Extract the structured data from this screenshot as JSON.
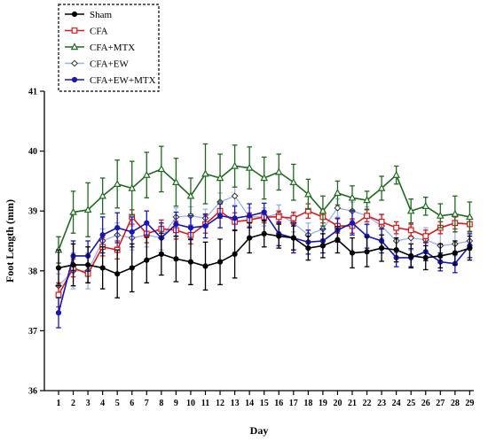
{
  "chart_data": {
    "type": "line",
    "title": "",
    "xlabel": "Day",
    "ylabel": "Foot Length (mm)",
    "ylim": [
      36,
      41
    ],
    "yticks": [
      36,
      37,
      38,
      39,
      40,
      41
    ],
    "x": [
      1,
      2,
      3,
      4,
      5,
      6,
      7,
      8,
      9,
      10,
      11,
      12,
      13,
      14,
      15,
      16,
      17,
      18,
      19,
      20,
      21,
      22,
      23,
      24,
      25,
      26,
      27,
      28,
      29
    ],
    "grid": false,
    "legend_position": "top-left",
    "series": [
      {
        "name": "Sham",
        "color": "#000000",
        "marker": "filled-circle",
        "values": [
          38.05,
          38.1,
          38.1,
          38.05,
          37.95,
          38.05,
          38.18,
          38.28,
          38.2,
          38.15,
          38.08,
          38.15,
          38.28,
          38.55,
          38.62,
          38.58,
          38.55,
          38.38,
          38.42,
          38.52,
          38.3,
          38.32,
          38.38,
          38.35,
          38.25,
          38.22,
          38.25,
          38.3,
          38.38
        ],
        "errors": [
          0.3,
          0.35,
          0.3,
          0.35,
          0.4,
          0.4,
          0.38,
          0.35,
          0.38,
          0.38,
          0.4,
          0.38,
          0.4,
          0.25,
          0.22,
          0.2,
          0.2,
          0.2,
          0.2,
          0.22,
          0.25,
          0.25,
          0.22,
          0.2,
          0.2,
          0.2,
          0.2,
          0.2,
          0.2
        ]
      },
      {
        "name": "CFA",
        "color": "#d81c1c",
        "marker": "open-square",
        "values": [
          37.6,
          38.05,
          37.95,
          38.4,
          38.35,
          38.9,
          38.62,
          38.7,
          38.68,
          38.6,
          38.78,
          39.0,
          38.82,
          38.85,
          38.9,
          38.9,
          38.88,
          39.0,
          38.9,
          38.75,
          38.75,
          38.92,
          38.82,
          38.72,
          38.68,
          38.58,
          38.72,
          38.8,
          38.78
        ],
        "errors": [
          0.2,
          0.15,
          0.15,
          0.15,
          0.15,
          0.12,
          0.15,
          0.15,
          0.15,
          0.15,
          0.15,
          0.12,
          0.15,
          0.12,
          0.1,
          0.1,
          0.1,
          0.12,
          0.1,
          0.12,
          0.12,
          0.1,
          0.12,
          0.1,
          0.1,
          0.1,
          0.1,
          0.1,
          0.12
        ]
      },
      {
        "name": "CFA+MTX",
        "color": "#1e6a1e",
        "marker": "open-triangle",
        "values": [
          38.35,
          38.98,
          39.02,
          39.25,
          39.45,
          39.38,
          39.6,
          39.7,
          39.48,
          39.25,
          39.62,
          39.55,
          39.75,
          39.72,
          39.55,
          39.65,
          39.48,
          39.28,
          39.0,
          39.3,
          39.22,
          39.18,
          39.38,
          39.6,
          39.0,
          39.08,
          38.92,
          38.95,
          38.9
        ],
        "errors": [
          0.22,
          0.35,
          0.45,
          0.3,
          0.4,
          0.45,
          0.38,
          0.38,
          0.4,
          0.3,
          0.5,
          0.4,
          0.35,
          0.35,
          0.35,
          0.3,
          0.3,
          0.25,
          0.25,
          0.2,
          0.2,
          0.15,
          0.2,
          0.15,
          0.2,
          0.15,
          0.2,
          0.3,
          0.25
        ]
      },
      {
        "name": "CFA+EW",
        "color": "#9bb0ee",
        "marker": "open-diamond",
        "values": [
          37.75,
          38.0,
          38.0,
          38.5,
          38.6,
          38.55,
          38.6,
          38.55,
          38.9,
          38.92,
          38.88,
          39.15,
          39.25,
          38.9,
          38.9,
          38.95,
          38.8,
          38.6,
          38.7,
          39.05,
          39.0,
          38.92,
          38.75,
          38.5,
          38.55,
          38.52,
          38.42,
          38.45,
          38.5
        ],
        "errors": [
          0.2,
          0.3,
          0.3,
          0.2,
          0.2,
          0.2,
          0.2,
          0.2,
          0.15,
          0.15,
          0.15,
          0.15,
          0.15,
          0.15,
          0.15,
          0.15,
          0.15,
          0.2,
          0.2,
          0.15,
          0.15,
          0.15,
          0.2,
          0.2,
          0.2,
          0.2,
          0.2,
          0.2,
          0.15
        ]
      },
      {
        "name": "CFA+EW+MTX",
        "color": "#1616b8",
        "marker": "filled-circle",
        "values": [
          37.3,
          38.25,
          38.25,
          38.6,
          38.72,
          38.65,
          38.8,
          38.55,
          38.78,
          38.72,
          38.75,
          38.92,
          38.88,
          38.92,
          38.98,
          38.62,
          38.55,
          38.48,
          38.5,
          38.68,
          38.8,
          38.58,
          38.5,
          38.22,
          38.22,
          38.32,
          38.15,
          38.12,
          38.42
        ],
        "errors": [
          0.25,
          0.25,
          0.25,
          0.3,
          0.25,
          0.25,
          0.2,
          0.25,
          0.2,
          0.2,
          0.2,
          0.2,
          0.2,
          0.2,
          0.15,
          0.2,
          0.25,
          0.2,
          0.2,
          0.2,
          0.2,
          0.2,
          0.2,
          0.15,
          0.15,
          0.15,
          0.15,
          0.15,
          0.2
        ]
      }
    ]
  }
}
